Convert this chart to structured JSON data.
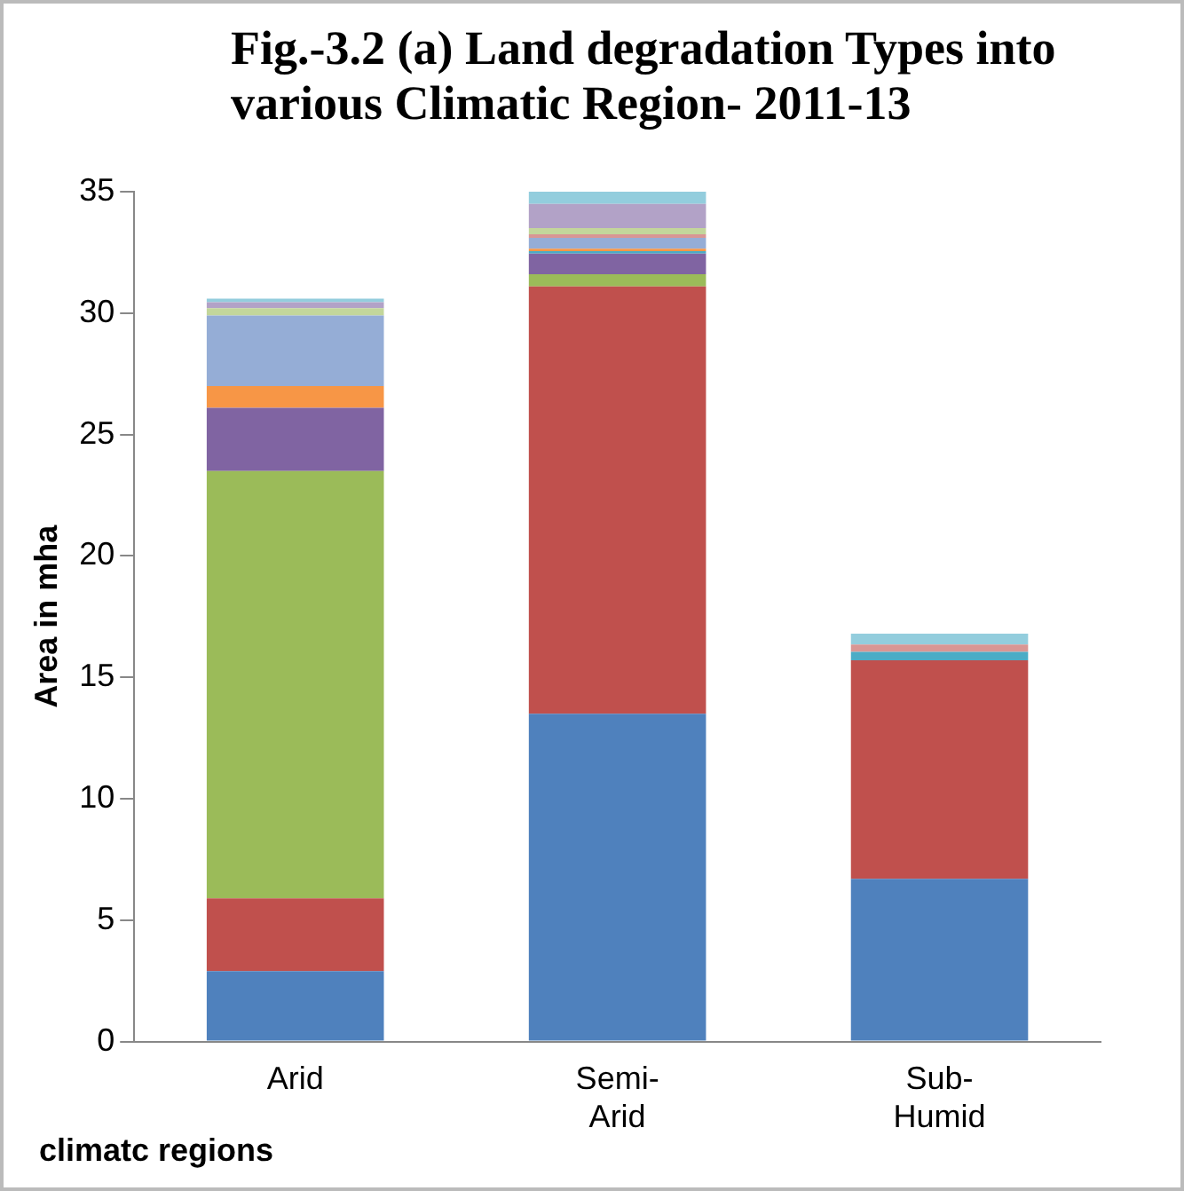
{
  "chart_data": {
    "type": "bar",
    "stacked": true,
    "title": "Fig.-3.2 (a) Land degradation Types into various Climatic Region- 2011-13",
    "xlabel": "climatc regions",
    "ylabel": "Area in mha",
    "categories": [
      "Arid",
      "Semi-Arid",
      "Sub-Humid"
    ],
    "series": [
      {
        "color": "#4f81bd",
        "values": [
          2.9,
          13.5,
          6.7
        ]
      },
      {
        "color": "#c0504d",
        "values": [
          3.0,
          17.6,
          9.0
        ]
      },
      {
        "color": "#9bbb59",
        "values": [
          17.6,
          0.5,
          null
        ]
      },
      {
        "color": "#8064a2",
        "values": [
          2.6,
          0.85,
          null
        ]
      },
      {
        "color": "#4bacc6",
        "values": [
          null,
          0.1,
          0.35
        ]
      },
      {
        "color": "#f79646",
        "values": [
          0.9,
          0.1,
          null
        ]
      },
      {
        "color": "#95add6",
        "values": [
          2.9,
          0.45,
          null
        ]
      },
      {
        "color": "#d99694",
        "values": [
          null,
          0.15,
          0.3
        ]
      },
      {
        "color": "#c3d69b",
        "values": [
          0.3,
          0.25,
          null
        ]
      },
      {
        "color": "#b2a2c7",
        "values": [
          0.25,
          1.0,
          null
        ]
      },
      {
        "color": "#93cddd",
        "values": [
          0.15,
          0.6,
          0.45
        ]
      }
    ],
    "ylim": [
      0,
      35
    ],
    "yticks": [
      0,
      5,
      10,
      15,
      20,
      25,
      30,
      35
    ],
    "grid": false,
    "legend": false
  }
}
